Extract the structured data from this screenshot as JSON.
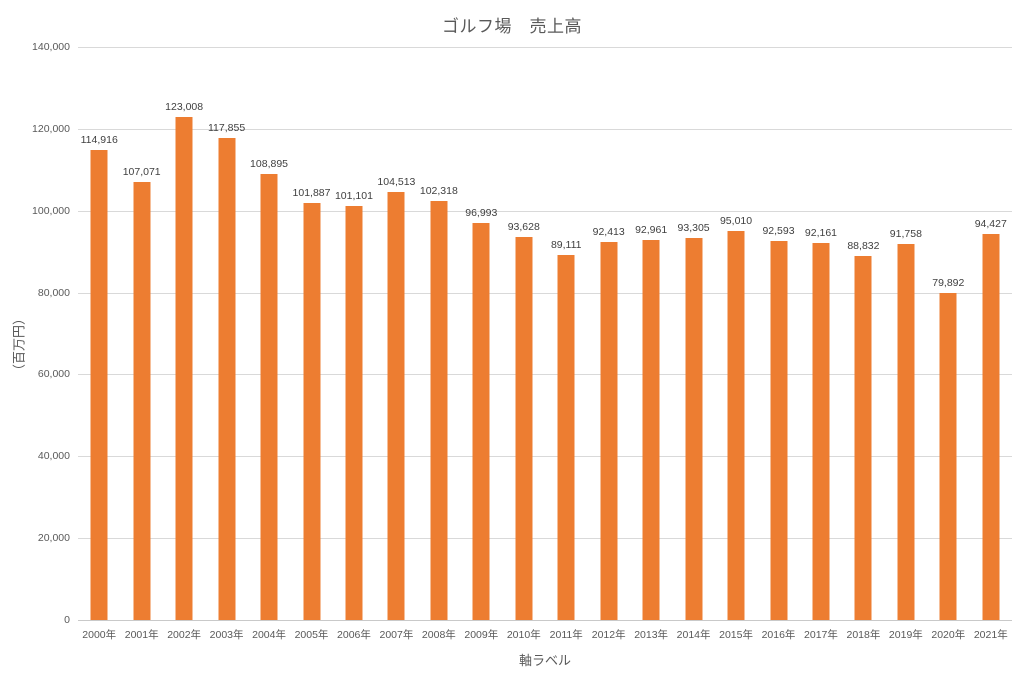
{
  "title": "ゴルフ場　売上高",
  "chart_data": {
    "type": "bar",
    "title": "ゴルフ場　売上高",
    "xlabel": "軸ラベル",
    "ylabel": "（百万円）",
    "categories": [
      "2000年",
      "2001年",
      "2002年",
      "2003年",
      "2004年",
      "2005年",
      "2006年",
      "2007年",
      "2008年",
      "2009年",
      "2010年",
      "2011年",
      "2012年",
      "2013年",
      "2014年",
      "2015年",
      "2016年",
      "2017年",
      "2018年",
      "2019年",
      "2020年",
      "2021年"
    ],
    "values": [
      114916,
      107071,
      123008,
      117855,
      108895,
      101887,
      101101,
      104513,
      102318,
      96993,
      93628,
      89111,
      92413,
      92961,
      93305,
      95010,
      92593,
      92161,
      88832,
      91758,
      79892,
      94427
    ],
    "data_labels": [
      "114,916",
      "107,071",
      "123,008",
      "117,855",
      "108,895",
      "101,887",
      "101,101",
      "104,513",
      "102,318",
      "96,993",
      "93,628",
      "89,111",
      "92,413",
      "92,961",
      "93,305",
      "95,010",
      "92,593",
      "92,161",
      "88,832",
      "91,758",
      "79,892",
      "94,427"
    ],
    "ylim": [
      0,
      140000
    ],
    "yticks": [
      {
        "value": 0,
        "label": "0"
      },
      {
        "value": 20000,
        "label": "20,000"
      },
      {
        "value": 40000,
        "label": "40,000"
      },
      {
        "value": 60000,
        "label": "60,000"
      },
      {
        "value": 80000,
        "label": "80,000"
      },
      {
        "value": 100000,
        "label": "100,000"
      },
      {
        "value": 120000,
        "label": "120,000"
      },
      {
        "value": 140000,
        "label": "140,000"
      }
    ],
    "grid": true,
    "legend": false,
    "colors": {
      "bar": "#ED7D31",
      "gridline": "#D9D9D9",
      "axis_line": "#C9C9C9",
      "title_text": "#595959",
      "tick_text": "#595959",
      "data_label_text": "#404040"
    }
  }
}
